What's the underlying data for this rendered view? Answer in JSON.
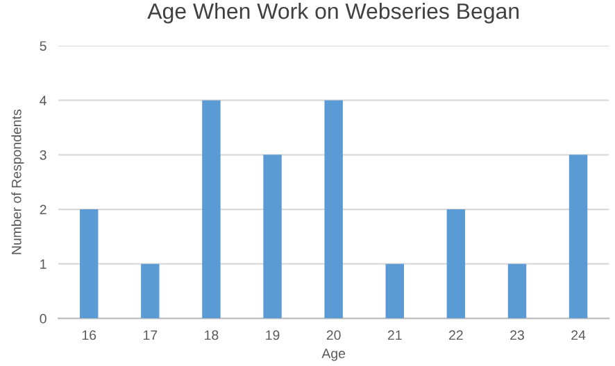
{
  "chart_data": {
    "type": "bar",
    "title": "Age When Work on Webseries Began",
    "xlabel": "Age",
    "ylabel": "Number of Respondents",
    "categories": [
      "16",
      "17",
      "18",
      "19",
      "20",
      "21",
      "22",
      "23",
      "24"
    ],
    "values": [
      2,
      1,
      4,
      3,
      4,
      1,
      2,
      1,
      3
    ],
    "color": "#5b9bd5",
    "ylim": [
      0,
      5
    ],
    "yticks": [
      0,
      1,
      2,
      3,
      4,
      5
    ],
    "grid": "y"
  }
}
